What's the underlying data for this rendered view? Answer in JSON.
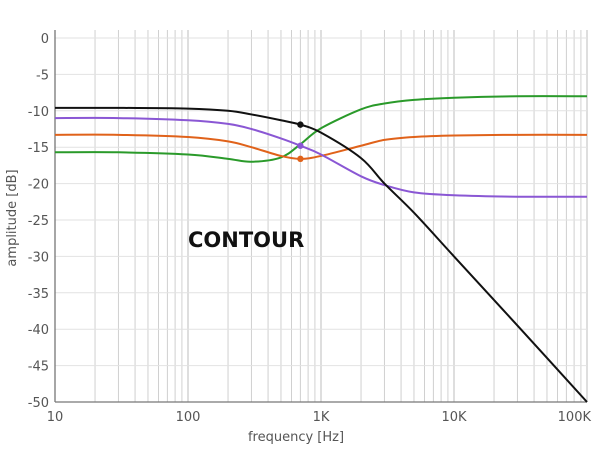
{
  "chart_data": {
    "type": "line",
    "title": "",
    "annotation": "CONTOUR",
    "xlabel": "frequency [Hz]",
    "ylabel": "amplitude [dB]",
    "xscale": "log",
    "xlim": [
      10,
      100000
    ],
    "ylim": [
      -50,
      0
    ],
    "x_ticks": [
      10,
      100,
      1000,
      10000,
      100000
    ],
    "x_tick_labels": [
      "10",
      "100",
      "1K",
      "10K",
      "100K"
    ],
    "y_ticks": [
      0,
      -5,
      -10,
      -15,
      -20,
      -25,
      -30,
      -35,
      -40,
      -45,
      -50
    ],
    "y_tick_labels": [
      "0",
      "-5",
      "-10",
      "-15",
      "-20",
      "-25",
      "-30",
      "-35",
      "-40",
      "-45",
      "-50"
    ],
    "grid": true,
    "legend": null,
    "x": [
      10,
      30,
      100,
      200,
      300,
      500,
      700,
      1000,
      2000,
      3000,
      5000,
      10000,
      30000,
      100000
    ],
    "series": [
      {
        "name": "black",
        "color": "#111111",
        "values": [
          -9.6,
          -9.6,
          -9.7,
          -10.0,
          -10.5,
          -11.3,
          -11.9,
          -13.0,
          -16.5,
          -20.0,
          -24.0,
          -30.0,
          -39.5,
          -50.0
        ]
      },
      {
        "name": "purple",
        "color": "#8a57d4",
        "values": [
          -11.0,
          -11.0,
          -11.3,
          -11.8,
          -12.5,
          -13.8,
          -14.8,
          -16.0,
          -19.0,
          -20.2,
          -21.2,
          -21.6,
          -21.8,
          -21.8
        ]
      },
      {
        "name": "orange",
        "color": "#e0621a",
        "values": [
          -13.3,
          -13.3,
          -13.6,
          -14.2,
          -15.0,
          -16.2,
          -16.6,
          -16.2,
          -14.8,
          -14.0,
          -13.6,
          -13.4,
          -13.3,
          -13.3
        ]
      },
      {
        "name": "green",
        "color": "#2a9a2a",
        "values": [
          -15.7,
          -15.7,
          -16.0,
          -16.6,
          -17.0,
          -16.4,
          -14.6,
          -12.4,
          -9.8,
          -9.0,
          -8.5,
          -8.2,
          -8.0,
          -8.0
        ]
      }
    ],
    "markers": [
      {
        "series": "black",
        "x": 700,
        "y": -11.9
      },
      {
        "series": "purple",
        "x": 700,
        "y": -14.8
      },
      {
        "series": "orange",
        "x": 700,
        "y": -16.6
      }
    ],
    "style": {
      "grid_color": "#d0d0d0",
      "axis_color": "#777777",
      "text_color": "#555555"
    }
  }
}
